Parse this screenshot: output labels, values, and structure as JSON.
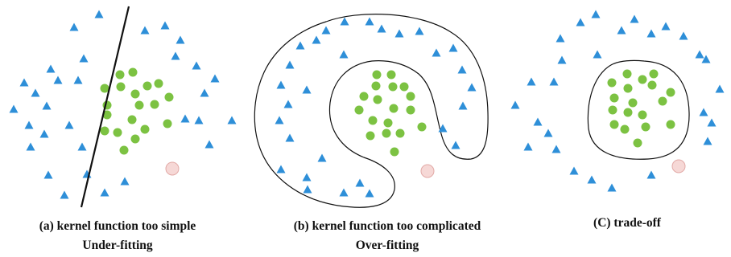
{
  "colors": {
    "triangle": "#2E8FD8",
    "circle": "#7CC242",
    "test_point_fill": "#F6D8D6",
    "test_point_stroke": "#E2A9A6",
    "boundary": "#111111"
  },
  "panels": [
    {
      "id": "a",
      "caption_line1": "(a) kernel function too simple",
      "caption_line2": "Under-fitting"
    },
    {
      "id": "b",
      "caption_line1": "(b) kernel function too complicated",
      "caption_line2": "Over-fitting"
    },
    {
      "id": "c",
      "caption_line1": "(C) trade-off",
      "caption_line2": ""
    }
  ]
}
